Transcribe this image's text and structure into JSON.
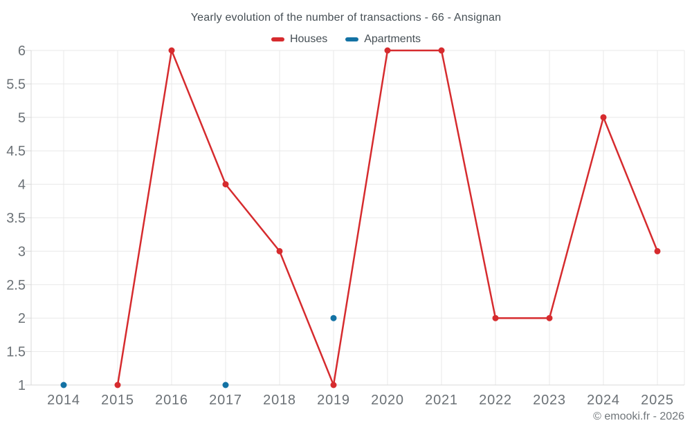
{
  "header": {
    "title": "Yearly evolution of the number of transactions - 66 - Ansignan"
  },
  "footer": {
    "copyright": "© emooki.fr - 2026"
  },
  "colors": {
    "houses": "#d62b2e",
    "apartments": "#1372a4",
    "grid": "#e8e8e8",
    "axis": "#d8d8d8",
    "tick_label": "#6b7176",
    "title_text": "#454e54",
    "background": "#ffffff"
  },
  "chart_data": {
    "type": "line",
    "title": "Yearly evolution of the number of transactions - 66 - Ansignan",
    "xlabel": "",
    "ylabel": "",
    "categories": [
      "2014",
      "2015",
      "2016",
      "2017",
      "2018",
      "2019",
      "2020",
      "2021",
      "2022",
      "2023",
      "2024",
      "2025"
    ],
    "series": [
      {
        "name": "Houses",
        "color": "#d62b2e",
        "mode": "line+markers",
        "values": [
          null,
          1,
          6,
          4,
          3,
          1,
          6,
          6,
          2,
          2,
          5,
          3
        ]
      },
      {
        "name": "Apartments",
        "color": "#1372a4",
        "mode": "markers",
        "values": [
          1,
          null,
          null,
          1,
          null,
          2,
          null,
          null,
          null,
          null,
          null,
          null
        ]
      }
    ],
    "ylim": [
      1,
      6
    ],
    "ytick_step": 0.5,
    "grid": true,
    "legend_position": "top"
  }
}
